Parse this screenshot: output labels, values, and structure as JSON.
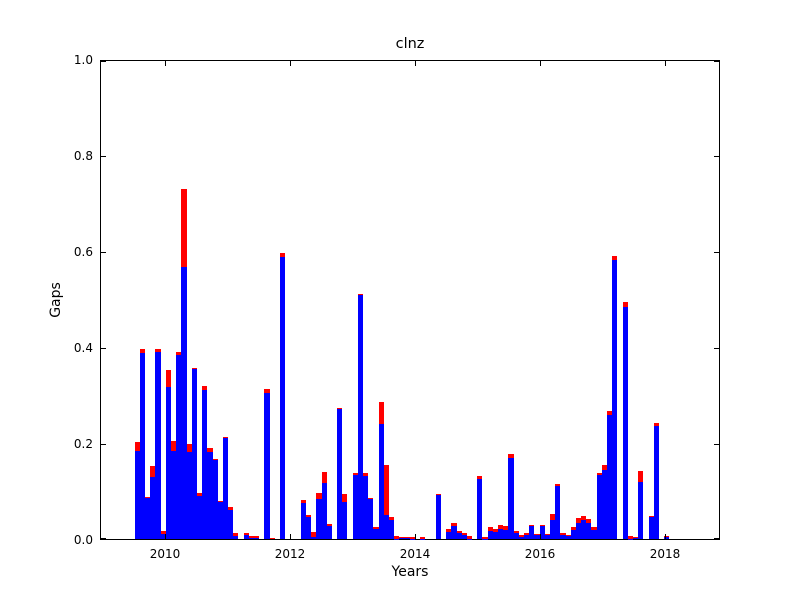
{
  "title": "clnz",
  "axes": {
    "xlabel": "Years",
    "ylabel": "Gaps",
    "xtick_labels": [
      "2010",
      "2012",
      "2014",
      "2016",
      "2018"
    ],
    "xtick_values": [
      2010,
      2012,
      2014,
      2016,
      2018
    ],
    "ytick_labels": [
      "0.0",
      "0.2",
      "0.4",
      "0.6",
      "0.8",
      "1.0"
    ],
    "ytick_values": [
      0.0,
      0.2,
      0.4,
      0.6,
      0.8,
      1.0
    ]
  },
  "colors": {
    "bar_blue": "#0000ff",
    "bar_red": "#ff0000",
    "axis": "#000000",
    "background": "#ffffff"
  },
  "chart_data": {
    "type": "bar",
    "stacked": true,
    "title": "clnz",
    "xlabel": "Years",
    "ylabel": "Gaps",
    "xlim": [
      2008.96,
      2018.88
    ],
    "ylim": [
      0,
      1
    ],
    "grid": false,
    "legend": "none",
    "start_month": "2009-07",
    "bar_width_months": 1,
    "series": [
      {
        "name": "blue",
        "color": "#0000ff",
        "values": [
          0.185,
          0.39,
          0.085,
          0.13,
          0.392,
          0.01,
          0.318,
          0.185,
          0.386,
          0.57,
          0.182,
          0.356,
          0.09,
          0.312,
          0.182,
          0.165,
          0.077,
          0.211,
          0.06,
          0.007,
          0,
          0.009,
          0.003,
          0.002,
          0,
          0.305,
          0.002,
          0,
          0.59,
          0,
          0,
          0,
          0.076,
          0.046,
          0.005,
          0.083,
          0.118,
          0.027,
          0,
          0.272,
          0.078,
          0,
          0.133,
          0.51,
          0.132,
          0.085,
          0.02,
          0.24,
          0.05,
          0.04,
          0.001,
          0.003,
          0.004,
          0.001,
          0,
          0.001,
          0,
          0,
          0.094,
          0,
          0.015,
          0.028,
          0.012,
          0.009,
          0.001,
          0,
          0.125,
          0.001,
          0.017,
          0.015,
          0.02,
          0.019,
          0.17,
          0.012,
          0.005,
          0.008,
          0.028,
          0.008,
          0.028,
          0.008,
          0.04,
          0.11,
          0.008,
          0.006,
          0.019,
          0.034,
          0.04,
          0.034,
          0.018,
          0.134,
          0.145,
          0.259,
          0.583,
          0,
          0.486,
          0.001,
          0.003,
          0.12,
          0,
          0.048,
          0.236,
          0,
          0.005,
          0
        ]
      },
      {
        "name": "red",
        "color": "#ff0000",
        "values": [
          0.017,
          0.007,
          0.003,
          0.022,
          0.005,
          0.006,
          0.036,
          0.02,
          0.006,
          0.162,
          0.016,
          0.002,
          0.006,
          0.008,
          0.008,
          0.002,
          0.002,
          0.002,
          0.008,
          0.005,
          0,
          0.004,
          0.003,
          0.005,
          0,
          0.008,
          0.001,
          0,
          0.008,
          0,
          0,
          0,
          0.005,
          0.005,
          0.01,
          0.013,
          0.022,
          0.005,
          0,
          0.002,
          0.017,
          0,
          0.005,
          0.002,
          0.006,
          0.001,
          0.006,
          0.047,
          0.104,
          0.006,
          0.005,
          0.001,
          0.001,
          0.003,
          0,
          0.004,
          0,
          0,
          0.001,
          0,
          0.006,
          0.006,
          0.004,
          0.004,
          0.005,
          0,
          0.007,
          0.004,
          0.008,
          0.006,
          0.01,
          0.009,
          0.008,
          0.005,
          0.004,
          0.005,
          0.001,
          0.003,
          0.001,
          0.002,
          0.012,
          0.006,
          0.005,
          0.002,
          0.006,
          0.009,
          0.008,
          0.007,
          0.008,
          0.005,
          0.01,
          0.008,
          0.009,
          0,
          0.009,
          0.005,
          0.001,
          0.023,
          0,
          0.001,
          0.006,
          0,
          0.001,
          0
        ]
      }
    ]
  }
}
